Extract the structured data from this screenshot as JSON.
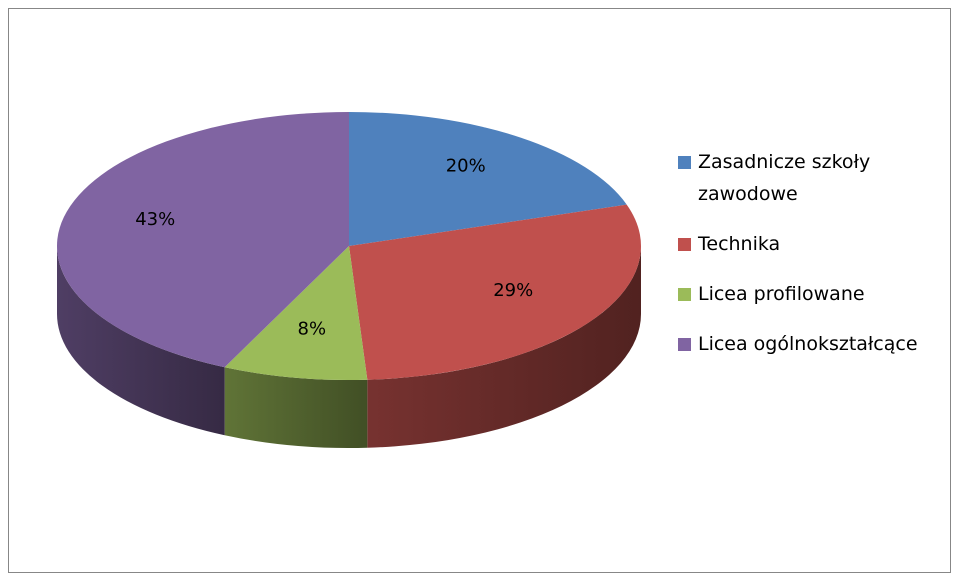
{
  "chart_data": {
    "type": "pie",
    "categories": [
      "Zasadnicze szkoły zawodowe",
      "Technika",
      "Licea profilowane",
      "Licea ogólnokształcące"
    ],
    "values": [
      20,
      29,
      8,
      43
    ],
    "value_labels": [
      "20%",
      "29%",
      "8%",
      "43%"
    ],
    "colors": [
      "#4f81bd",
      "#c0504d",
      "#9bbb59",
      "#8064a2"
    ],
    "legend": "right"
  }
}
